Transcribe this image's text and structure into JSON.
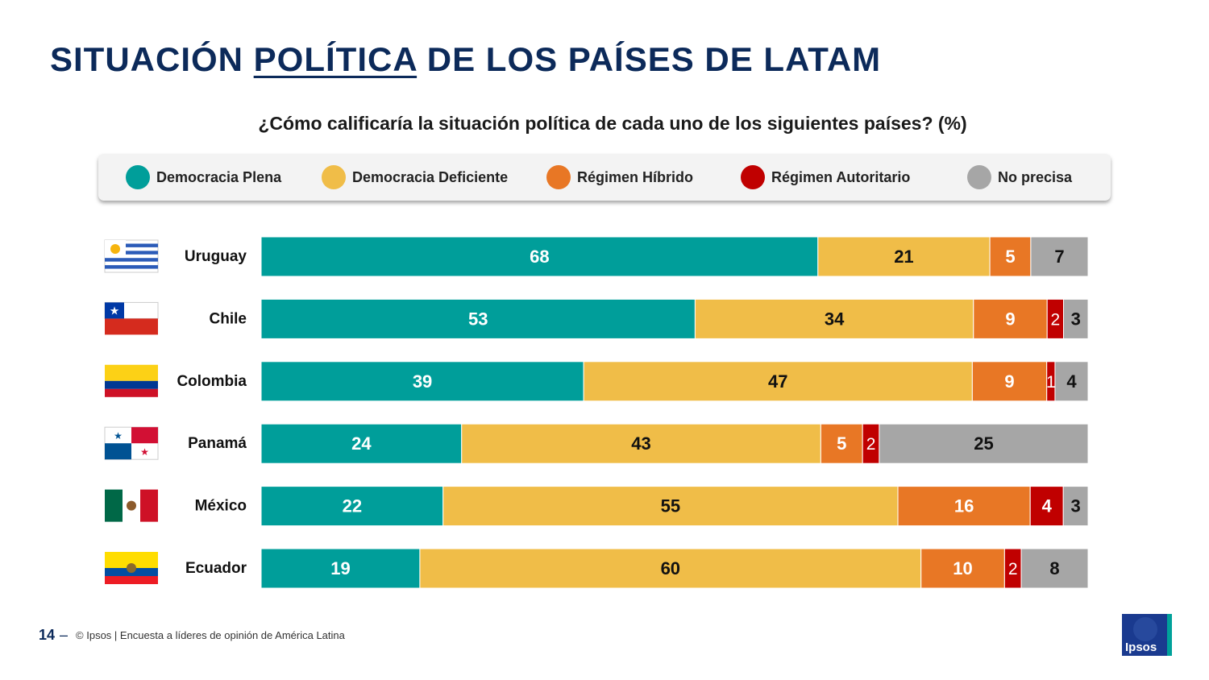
{
  "page": {
    "title_pre": "SITUACIÓN ",
    "title_underlined": "POLÍTICA",
    "title_post": " DE LOS PAÍSES DE LATAM",
    "question": "¿Cómo calificaría la situación política de cada uno de los siguientes países? (%)",
    "page_number": "14",
    "footer_dash": "–",
    "footer_text": "© Ipsos | Encuesta a líderes de opinión de América Latina",
    "logo_text": "Ipsos"
  },
  "legend": [
    {
      "label": "Democracia Plena",
      "color": "#009e9a"
    },
    {
      "label": "Democracia Deficiente",
      "color": "#f0bd48"
    },
    {
      "label": "Régimen Híbrido",
      "color": "#e87725"
    },
    {
      "label": "Régimen Autoritario",
      "color": "#c00000"
    },
    {
      "label": "No precisa",
      "color": "#a6a6a6"
    }
  ],
  "chart_data": {
    "type": "bar",
    "stacked": true,
    "orientation": "horizontal",
    "unit": "%",
    "categories": [
      "Uruguay",
      "Chile",
      "Colombia",
      "Panamá",
      "México",
      "Ecuador"
    ],
    "series": [
      {
        "name": "Democracia Plena",
        "color": "#009e9a",
        "values": [
          68,
          53,
          39,
          24,
          22,
          19
        ]
      },
      {
        "name": "Democracia Deficiente",
        "color": "#f0bd48",
        "values": [
          21,
          34,
          47,
          43,
          55,
          60
        ]
      },
      {
        "name": "Régimen Híbrido",
        "color": "#e87725",
        "values": [
          5,
          9,
          9,
          5,
          16,
          10
        ]
      },
      {
        "name": "Régimen Autoritario",
        "color": "#c00000",
        "values": [
          null,
          2,
          1,
          2,
          4,
          2
        ]
      },
      {
        "name": "No precisa",
        "color": "#a6a6a6",
        "values": [
          7,
          3,
          4,
          25,
          3,
          8
        ]
      }
    ],
    "flags": [
      "flag-uruguay",
      "flag-chile",
      "flag-colombia",
      "flag-panama",
      "flag-mexico",
      "flag-ecuador"
    ]
  }
}
